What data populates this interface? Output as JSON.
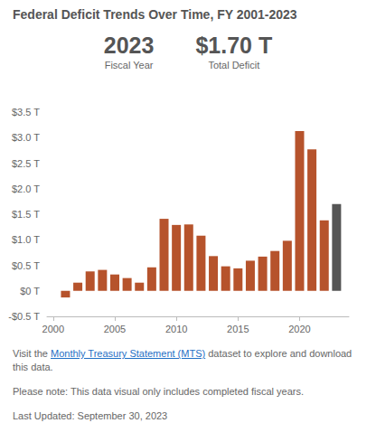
{
  "chart_data": {
    "type": "bar",
    "title": "Federal Deficit Trends Over Time, FY 2001-2023",
    "x": [
      2001,
      2002,
      2003,
      2004,
      2005,
      2006,
      2007,
      2008,
      2009,
      2010,
      2011,
      2012,
      2013,
      2014,
      2015,
      2016,
      2017,
      2018,
      2019,
      2020,
      2021,
      2022,
      2023
    ],
    "values": [
      -0.13,
      0.16,
      0.38,
      0.41,
      0.32,
      0.25,
      0.16,
      0.46,
      1.41,
      1.29,
      1.3,
      1.08,
      0.68,
      0.48,
      0.44,
      0.59,
      0.67,
      0.78,
      0.98,
      3.13,
      2.77,
      1.38,
      1.7
    ],
    "colors": [
      "#b6532c",
      "#b6532c",
      "#b6532c",
      "#b6532c",
      "#b6532c",
      "#b6532c",
      "#b6532c",
      "#b6532c",
      "#b6532c",
      "#b6532c",
      "#b6532c",
      "#b6532c",
      "#b6532c",
      "#b6532c",
      "#b6532c",
      "#b6532c",
      "#b6532c",
      "#b6532c",
      "#b6532c",
      "#b6532c",
      "#b6532c",
      "#b6532c",
      "#555555"
    ],
    "xlim": [
      1999.5,
      2024
    ],
    "xticks": [
      2000,
      2005,
      2010,
      2015,
      2020
    ],
    "ylim": [
      -0.5,
      3.5
    ],
    "yticks": [
      {
        "value": -0.5,
        "label": "-$0.5 T"
      },
      {
        "value": 0,
        "label": "$0 T"
      },
      {
        "value": 0.5,
        "label": "$0.5 T"
      },
      {
        "value": 1,
        "label": "$1.0 T"
      },
      {
        "value": 1.5,
        "label": "$1.5 T"
      },
      {
        "value": 2,
        "label": "$2.0 T"
      },
      {
        "value": 2.5,
        "label": "$2.5 T"
      },
      {
        "value": 3,
        "label": "$3.0 T"
      },
      {
        "value": 3.5,
        "label": "$3.5 T"
      }
    ],
    "grid": false
  },
  "stats": [
    {
      "value": "2023",
      "label": "Fiscal Year"
    },
    {
      "value": "$1.70 T",
      "label": "Total Deficit"
    }
  ],
  "notes": [
    {
      "before": "Visit the ",
      "link": "Monthly Treasury Statement (MTS)",
      "after": " dataset to explore and download this data."
    },
    {
      "text": "Please note: This data visual only includes completed fiscal years."
    },
    {
      "text": "Last Updated: September 30, 2023"
    }
  ]
}
